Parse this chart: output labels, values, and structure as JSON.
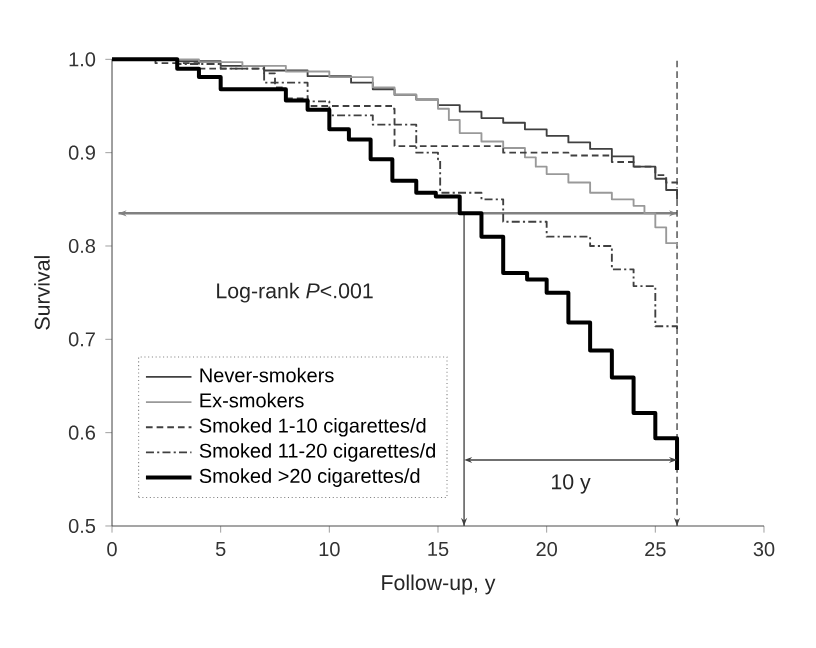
{
  "chart_data": {
    "type": "step",
    "xlabel": "Follow-up, y",
    "ylabel": "Survival",
    "xlim": [
      0,
      30
    ],
    "ylim": [
      0.5,
      1.0
    ],
    "xticks": [
      0,
      5,
      10,
      15,
      20,
      25,
      30
    ],
    "yticks": [
      0.5,
      0.6,
      0.7,
      0.8,
      0.9,
      {
        "value": 1,
        "label": "1.0"
      }
    ],
    "legend": "bottom left",
    "grid": false,
    "series": [
      {
        "name": "Never-smokers",
        "color": "#404040",
        "line_style": "solid",
        "x": [
          0,
          3,
          5,
          7,
          9,
          11,
          12,
          13,
          14,
          15,
          16,
          17,
          18,
          19,
          20,
          21,
          22,
          23,
          24,
          25,
          25.5,
          26
        ],
        "values": [
          1.0,
          0.998,
          0.993,
          0.988,
          0.982,
          0.975,
          0.968,
          0.962,
          0.957,
          0.951,
          0.944,
          0.937,
          0.932,
          0.925,
          0.918,
          0.911,
          0.904,
          0.896,
          0.885,
          0.872,
          0.86,
          0.85
        ]
      },
      {
        "name": "Ex-smokers",
        "color": "#999999",
        "line_style": "solid",
        "x": [
          0,
          4,
          6,
          8,
          10,
          12,
          13,
          14,
          15,
          15.5,
          16,
          17,
          18,
          19,
          19.5,
          20,
          21,
          22,
          23,
          24,
          24.5,
          25,
          25.5,
          26
        ],
        "values": [
          1.0,
          0.997,
          0.993,
          0.987,
          0.981,
          0.97,
          0.962,
          0.957,
          0.947,
          0.935,
          0.921,
          0.912,
          0.905,
          0.895,
          0.885,
          0.877,
          0.868,
          0.857,
          0.85,
          0.843,
          0.835,
          0.82,
          0.803,
          0.8
        ]
      },
      {
        "name": "Smoked 1-10 cigarettes/d",
        "color": "#404040",
        "line_style": "dashed",
        "x": [
          0,
          2,
          4,
          7,
          7.5,
          8,
          9,
          12.9,
          13,
          18,
          21,
          23,
          24,
          25,
          25.5,
          26
        ],
        "values": [
          1.0,
          0.996,
          0.99,
          0.985,
          0.97,
          0.958,
          0.95,
          0.947,
          0.907,
          0.9,
          0.897,
          0.89,
          0.885,
          0.876,
          0.868,
          0.862
        ]
      },
      {
        "name": "Smoked 11-20 cigarettes/d",
        "color": "#404040",
        "line_style": "dashdot",
        "x": [
          0,
          3,
          5,
          7,
          9,
          10,
          12,
          14,
          15,
          15.1,
          17,
          18,
          20,
          22,
          23,
          24,
          25,
          26
        ],
        "values": [
          1.0,
          0.995,
          0.99,
          0.975,
          0.955,
          0.94,
          0.93,
          0.9,
          0.893,
          0.857,
          0.85,
          0.826,
          0.81,
          0.8,
          0.775,
          0.757,
          0.714,
          0.71
        ]
      },
      {
        "name": "Smoked >20 cigarettes/d",
        "color": "#000000",
        "line_style": "solid",
        "x": [
          0,
          3,
          4,
          5,
          8,
          9,
          10,
          10.9,
          11.9,
          12.9,
          14,
          14.9,
          16,
          17,
          18,
          19.1,
          20,
          21,
          22,
          23,
          24,
          25,
          26
        ],
        "values": [
          1.0,
          0.99,
          0.981,
          0.968,
          0.956,
          0.946,
          0.925,
          0.914,
          0.893,
          0.87,
          0.857,
          0.853,
          0.835,
          0.81,
          0.771,
          0.764,
          0.75,
          0.718,
          0.688,
          0.659,
          0.621,
          0.594,
          0.56
        ]
      }
    ],
    "ref_lines": [
      {
        "axis": "y",
        "value": 0.835,
        "label": null,
        "color": "#808080",
        "line_style": "solid"
      },
      {
        "axis": "x",
        "value": 16.2,
        "label": null,
        "color": "#404040",
        "line_style": "solid"
      },
      {
        "axis": "x",
        "value": 26,
        "label": null,
        "color": "#404040",
        "line_style": "dashed"
      }
    ],
    "annotations": [
      "Log-rank *P*<.001",
      "10 y"
    ]
  }
}
